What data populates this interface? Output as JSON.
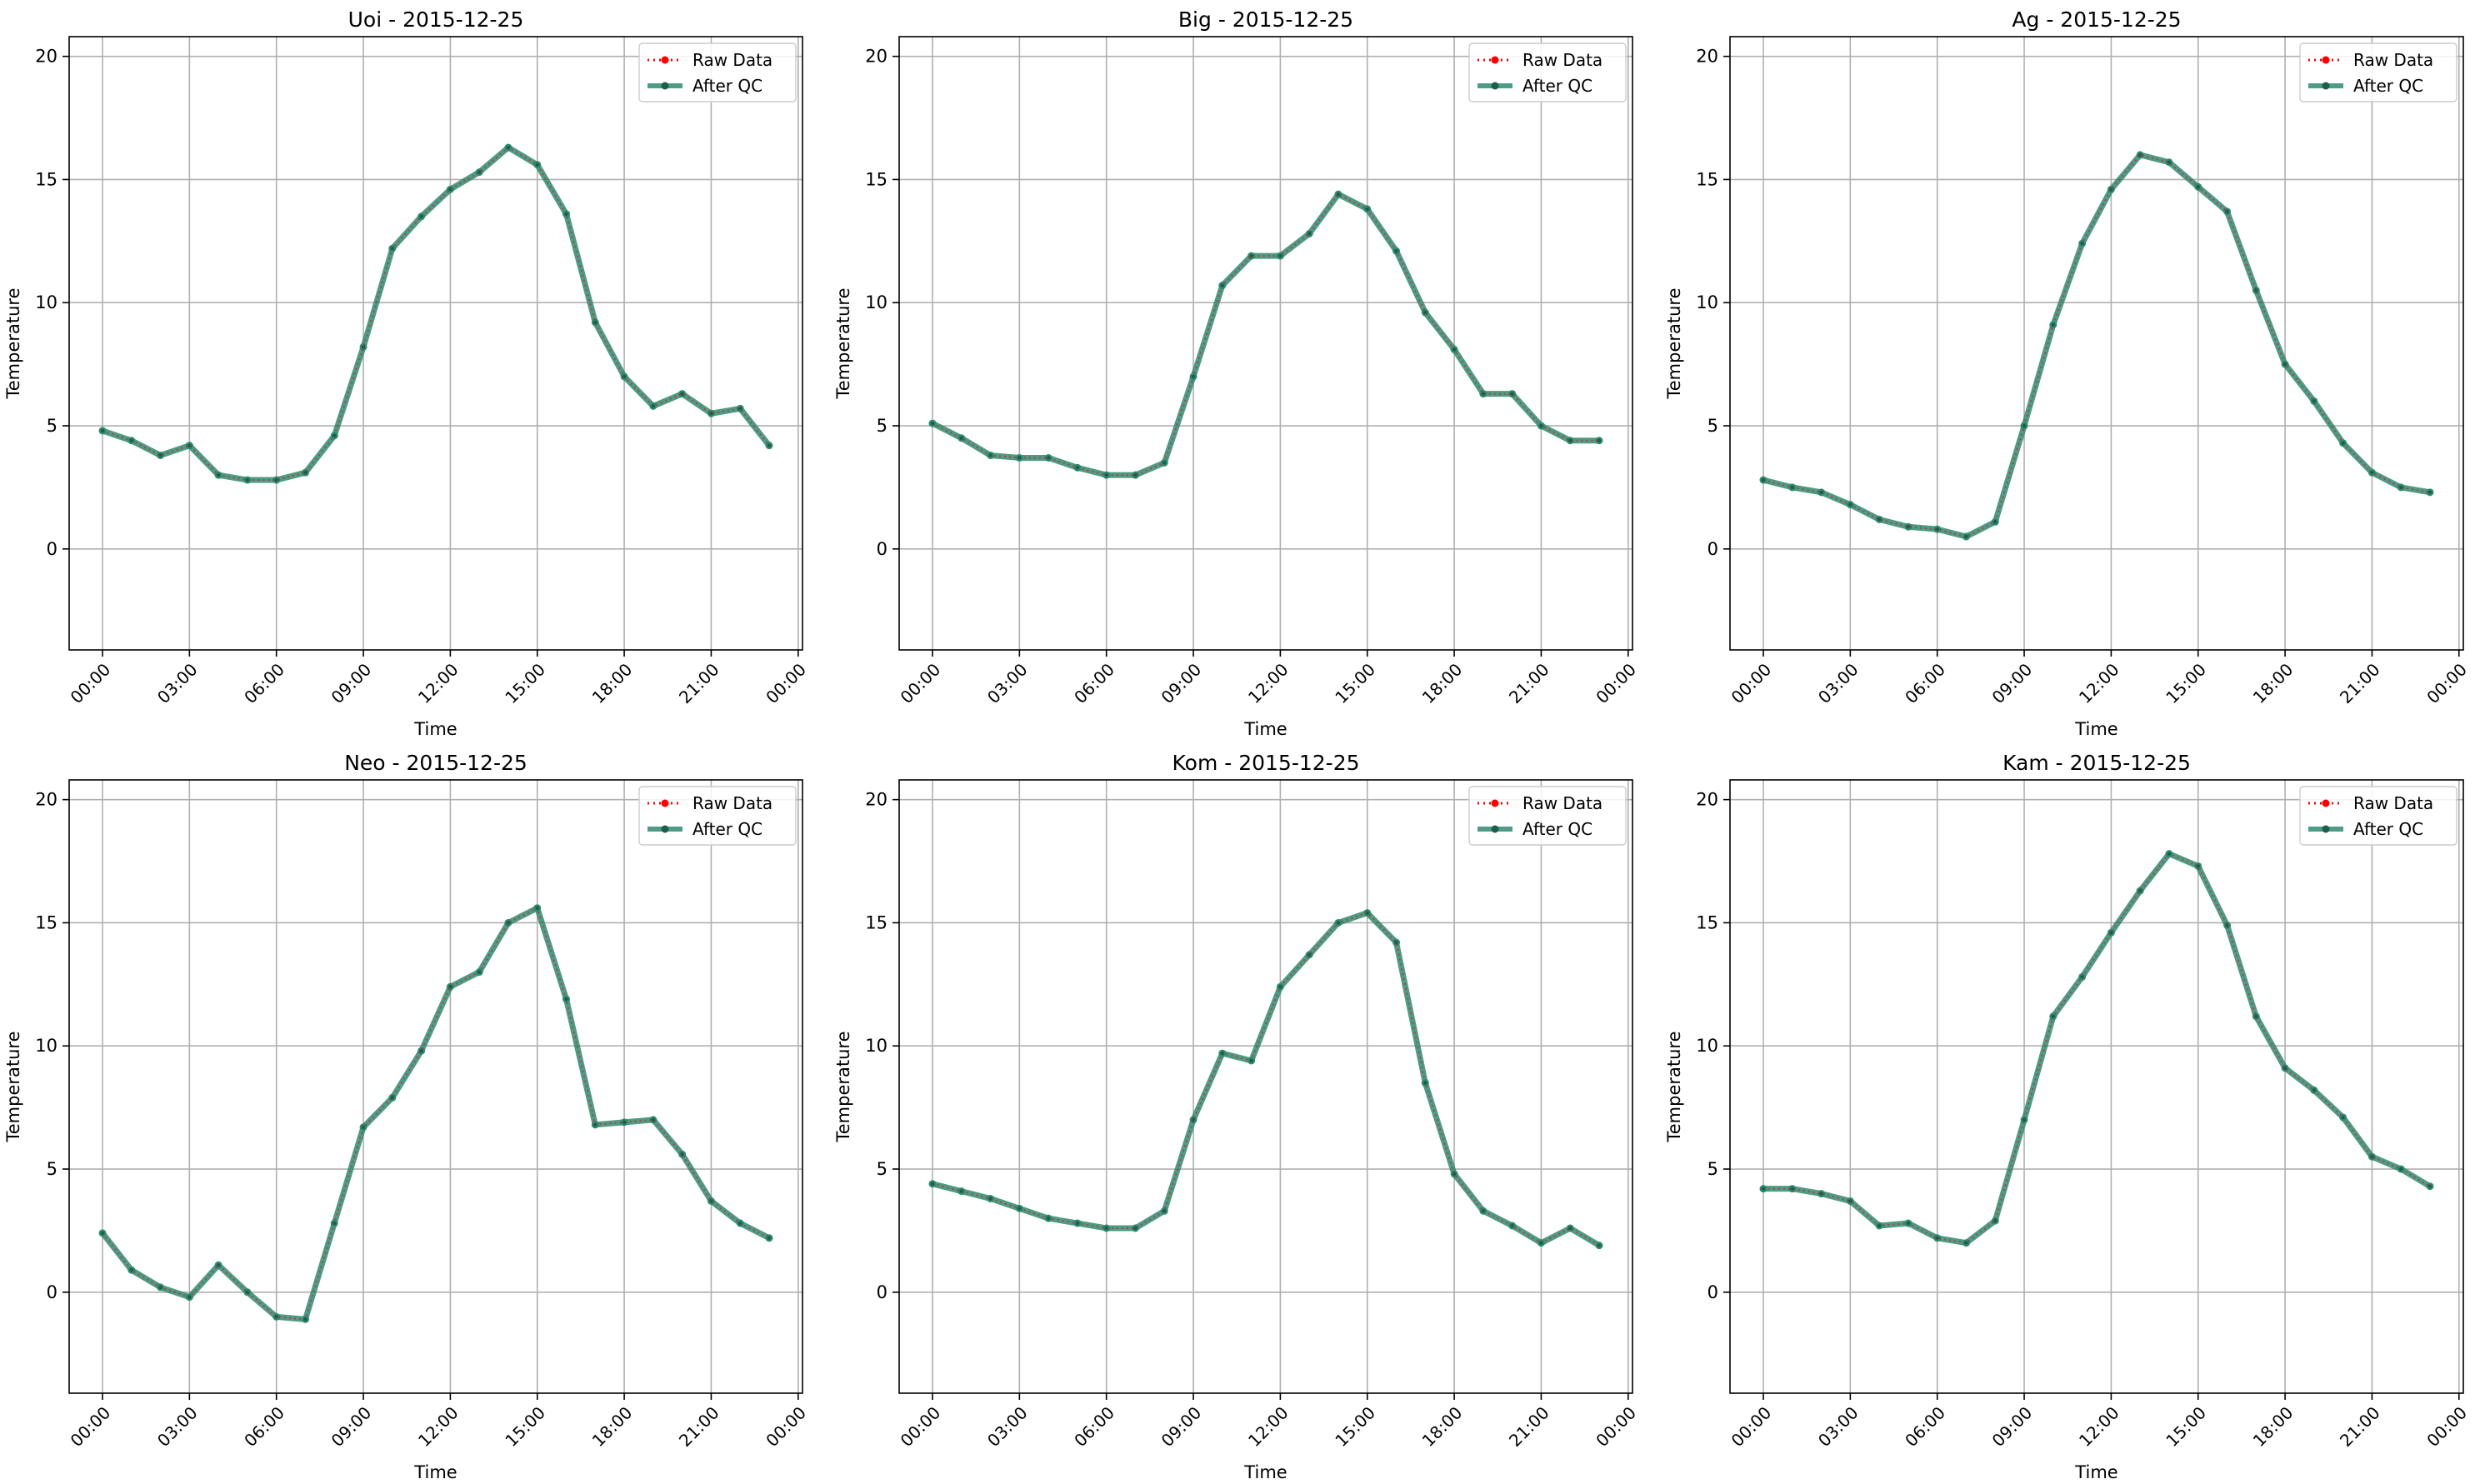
{
  "figure": {
    "background": "#ffffff",
    "colors": {
      "raw": "#ff0000",
      "qc": "#2e8b70",
      "grid": "#b0b0b0",
      "axis": "#000000"
    }
  },
  "chart_data": [
    {
      "type": "line",
      "title": "Uoi - 2015-12-25",
      "xlabel": "Time",
      "ylabel": "Temperature",
      "x": [
        "00:00",
        "01:00",
        "02:00",
        "03:00",
        "04:00",
        "05:00",
        "06:00",
        "07:00",
        "08:00",
        "09:00",
        "10:00",
        "11:00",
        "12:00",
        "13:00",
        "14:00",
        "15:00",
        "16:00",
        "17:00",
        "18:00",
        "19:00",
        "20:00",
        "21:00",
        "22:00",
        "23:00"
      ],
      "xticks": [
        "00:00",
        "03:00",
        "06:00",
        "09:00",
        "12:00",
        "15:00",
        "18:00",
        "21:00",
        "00:00"
      ],
      "yticks": [
        0,
        5,
        10,
        15,
        20
      ],
      "ylim": [
        -4.1,
        20.8
      ],
      "grid": true,
      "legend": "top-right",
      "series": [
        {
          "name": "Raw Data",
          "style": "dotted",
          "color": "#ff0000",
          "values": [
            4.8,
            4.4,
            3.8,
            4.2,
            3.0,
            2.8,
            2.8,
            3.1,
            4.6,
            8.2,
            12.2,
            13.5,
            14.6,
            15.3,
            16.3,
            15.6,
            13.6,
            9.2,
            7.0,
            5.8,
            6.3,
            5.5,
            5.7,
            4.2
          ]
        },
        {
          "name": "After QC",
          "style": "solid",
          "color": "#2e8b70",
          "values": [
            4.8,
            4.4,
            3.8,
            4.2,
            3.0,
            2.8,
            2.8,
            3.1,
            4.6,
            8.2,
            12.2,
            13.5,
            14.6,
            15.3,
            16.3,
            15.6,
            13.6,
            9.2,
            7.0,
            5.8,
            6.3,
            5.5,
            5.7,
            4.2
          ]
        }
      ]
    },
    {
      "type": "line",
      "title": "Big - 2015-12-25",
      "xlabel": "Time",
      "ylabel": "Temperature",
      "x": [
        "00:00",
        "01:00",
        "02:00",
        "03:00",
        "04:00",
        "05:00",
        "06:00",
        "07:00",
        "08:00",
        "09:00",
        "10:00",
        "11:00",
        "12:00",
        "13:00",
        "14:00",
        "15:00",
        "16:00",
        "17:00",
        "18:00",
        "19:00",
        "20:00",
        "21:00",
        "22:00",
        "23:00"
      ],
      "xticks": [
        "00:00",
        "03:00",
        "06:00",
        "09:00",
        "12:00",
        "15:00",
        "18:00",
        "21:00",
        "00:00"
      ],
      "yticks": [
        0,
        5,
        10,
        15,
        20
      ],
      "ylim": [
        -4.1,
        20.8
      ],
      "grid": true,
      "legend": "top-right",
      "series": [
        {
          "name": "Raw Data",
          "style": "dotted",
          "color": "#ff0000",
          "values": [
            5.1,
            4.5,
            3.8,
            3.7,
            3.7,
            3.3,
            3.0,
            3.0,
            3.5,
            7.0,
            10.7,
            11.9,
            11.9,
            12.8,
            14.4,
            13.8,
            12.1,
            9.6,
            8.1,
            6.3,
            6.3,
            5.0,
            4.4,
            4.4
          ]
        },
        {
          "name": "After QC",
          "style": "solid",
          "color": "#2e8b70",
          "values": [
            5.1,
            4.5,
            3.8,
            3.7,
            3.7,
            3.3,
            3.0,
            3.0,
            3.5,
            7.0,
            10.7,
            11.9,
            11.9,
            12.8,
            14.4,
            13.8,
            12.1,
            9.6,
            8.1,
            6.3,
            6.3,
            5.0,
            4.4,
            4.4
          ]
        }
      ]
    },
    {
      "type": "line",
      "title": "Ag - 2015-12-25",
      "xlabel": "Time",
      "ylabel": "Temperature",
      "x": [
        "00:00",
        "01:00",
        "02:00",
        "03:00",
        "04:00",
        "05:00",
        "06:00",
        "07:00",
        "08:00",
        "09:00",
        "10:00",
        "11:00",
        "12:00",
        "13:00",
        "14:00",
        "15:00",
        "16:00",
        "17:00",
        "18:00",
        "19:00",
        "20:00",
        "21:00",
        "22:00",
        "23:00"
      ],
      "xticks": [
        "00:00",
        "03:00",
        "06:00",
        "09:00",
        "12:00",
        "15:00",
        "18:00",
        "21:00",
        "00:00"
      ],
      "yticks": [
        0,
        5,
        10,
        15,
        20
      ],
      "ylim": [
        -4.1,
        20.8
      ],
      "grid": true,
      "legend": "top-right",
      "series": [
        {
          "name": "Raw Data",
          "style": "dotted",
          "color": "#ff0000",
          "values": [
            2.8,
            2.5,
            2.3,
            1.8,
            1.2,
            0.9,
            0.8,
            0.5,
            1.1,
            5.0,
            9.1,
            12.4,
            14.6,
            16.0,
            15.7,
            14.7,
            13.7,
            10.5,
            7.5,
            6.0,
            4.3,
            3.1,
            2.5,
            2.3
          ]
        },
        {
          "name": "After QC",
          "style": "solid",
          "color": "#2e8b70",
          "values": [
            2.8,
            2.5,
            2.3,
            1.8,
            1.2,
            0.9,
            0.8,
            0.5,
            1.1,
            5.0,
            9.1,
            12.4,
            14.6,
            16.0,
            15.7,
            14.7,
            13.7,
            10.5,
            7.5,
            6.0,
            4.3,
            3.1,
            2.5,
            2.3
          ]
        }
      ]
    },
    {
      "type": "line",
      "title": "Neo - 2015-12-25",
      "xlabel": "Time",
      "ylabel": "Temperature",
      "x": [
        "00:00",
        "01:00",
        "02:00",
        "03:00",
        "04:00",
        "05:00",
        "06:00",
        "07:00",
        "08:00",
        "09:00",
        "10:00",
        "11:00",
        "12:00",
        "13:00",
        "14:00",
        "15:00",
        "16:00",
        "17:00",
        "18:00",
        "19:00",
        "20:00",
        "21:00",
        "22:00",
        "23:00"
      ],
      "xticks": [
        "00:00",
        "03:00",
        "06:00",
        "09:00",
        "12:00",
        "15:00",
        "18:00",
        "21:00",
        "00:00"
      ],
      "yticks": [
        0,
        5,
        10,
        15,
        20
      ],
      "ylim": [
        -4.1,
        20.8
      ],
      "grid": true,
      "legend": "top-right",
      "series": [
        {
          "name": "Raw Data",
          "style": "dotted",
          "color": "#ff0000",
          "values": [
            2.4,
            0.9,
            0.2,
            -0.2,
            1.1,
            0.0,
            -1.0,
            -1.1,
            2.8,
            6.7,
            7.9,
            9.8,
            12.4,
            13.0,
            15.0,
            15.6,
            11.9,
            6.8,
            6.9,
            7.0,
            5.6,
            3.7,
            2.8,
            2.2
          ]
        },
        {
          "name": "After QC",
          "style": "solid",
          "color": "#2e8b70",
          "values": [
            2.4,
            0.9,
            0.2,
            -0.2,
            1.1,
            0.0,
            -1.0,
            -1.1,
            2.8,
            6.7,
            7.9,
            9.8,
            12.4,
            13.0,
            15.0,
            15.6,
            11.9,
            6.8,
            6.9,
            7.0,
            5.6,
            3.7,
            2.8,
            2.2
          ]
        }
      ]
    },
    {
      "type": "line",
      "title": "Kom - 2015-12-25",
      "xlabel": "Time",
      "ylabel": "Temperature",
      "x": [
        "00:00",
        "01:00",
        "02:00",
        "03:00",
        "04:00",
        "05:00",
        "06:00",
        "07:00",
        "08:00",
        "09:00",
        "10:00",
        "11:00",
        "12:00",
        "13:00",
        "14:00",
        "15:00",
        "16:00",
        "17:00",
        "18:00",
        "19:00",
        "20:00",
        "21:00",
        "22:00",
        "23:00"
      ],
      "xticks": [
        "00:00",
        "03:00",
        "06:00",
        "09:00",
        "12:00",
        "15:00",
        "18:00",
        "21:00",
        "00:00"
      ],
      "yticks": [
        0,
        5,
        10,
        15,
        20
      ],
      "ylim": [
        -4.1,
        20.8
      ],
      "grid": true,
      "legend": "top-right",
      "series": [
        {
          "name": "Raw Data",
          "style": "dotted",
          "color": "#ff0000",
          "values": [
            4.4,
            4.1,
            3.8,
            3.4,
            3.0,
            2.8,
            2.6,
            2.6,
            3.3,
            7.0,
            9.7,
            9.4,
            12.4,
            13.7,
            15.0,
            15.4,
            14.2,
            8.5,
            4.8,
            3.3,
            2.7,
            2.0,
            2.6,
            1.9
          ]
        },
        {
          "name": "After QC",
          "style": "solid",
          "color": "#2e8b70",
          "values": [
            4.4,
            4.1,
            3.8,
            3.4,
            3.0,
            2.8,
            2.6,
            2.6,
            3.3,
            7.0,
            9.7,
            9.4,
            12.4,
            13.7,
            15.0,
            15.4,
            14.2,
            8.5,
            4.8,
            3.3,
            2.7,
            2.0,
            2.6,
            1.9
          ]
        }
      ]
    },
    {
      "type": "line",
      "title": "Kam - 2015-12-25",
      "xlabel": "Time",
      "ylabel": "Temperature",
      "x": [
        "00:00",
        "01:00",
        "02:00",
        "03:00",
        "04:00",
        "05:00",
        "06:00",
        "07:00",
        "08:00",
        "09:00",
        "10:00",
        "11:00",
        "12:00",
        "13:00",
        "14:00",
        "15:00",
        "16:00",
        "17:00",
        "18:00",
        "19:00",
        "20:00",
        "21:00",
        "22:00",
        "23:00"
      ],
      "xticks": [
        "00:00",
        "03:00",
        "06:00",
        "09:00",
        "12:00",
        "15:00",
        "18:00",
        "21:00",
        "00:00"
      ],
      "yticks": [
        0,
        5,
        10,
        15,
        20
      ],
      "ylim": [
        -4.1,
        20.8
      ],
      "grid": true,
      "legend": "top-right",
      "series": [
        {
          "name": "Raw Data",
          "style": "dotted",
          "color": "#ff0000",
          "values": [
            4.2,
            4.2,
            4.0,
            3.7,
            2.7,
            2.8,
            2.2,
            2.0,
            2.9,
            7.0,
            11.2,
            12.8,
            14.6,
            16.3,
            17.8,
            17.3,
            14.9,
            11.2,
            9.1,
            8.2,
            7.1,
            5.5,
            5.0,
            4.3
          ]
        },
        {
          "name": "After QC",
          "style": "solid",
          "color": "#2e8b70",
          "values": [
            4.2,
            4.2,
            4.0,
            3.7,
            2.7,
            2.8,
            2.2,
            2.0,
            2.9,
            7.0,
            11.2,
            12.8,
            14.6,
            16.3,
            17.8,
            17.3,
            14.9,
            11.2,
            9.1,
            8.2,
            7.1,
            5.5,
            5.0,
            4.3
          ]
        }
      ]
    }
  ]
}
